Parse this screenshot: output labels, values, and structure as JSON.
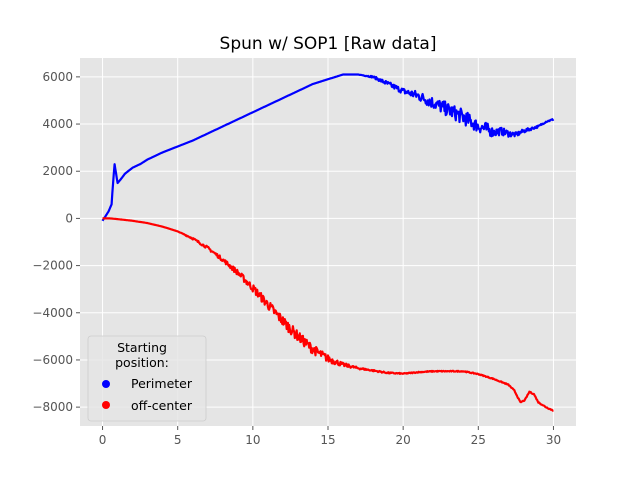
{
  "chart_data": {
    "type": "line",
    "title": "Spun w/ SOP1 [Raw data]",
    "xlabel": "",
    "ylabel": "",
    "xlim": [
      -1.5,
      31.5
    ],
    "ylim": [
      -8800,
      6800
    ],
    "x_ticks": [
      0,
      5,
      10,
      15,
      20,
      25,
      30
    ],
    "y_ticks": [
      -8000,
      -6000,
      -4000,
      -2000,
      0,
      2000,
      4000,
      6000
    ],
    "grid": true,
    "legend": {
      "title": "Starting\n position:",
      "placement": "lower-left",
      "entries": [
        "Perimeter",
        "off-center"
      ]
    },
    "series": [
      {
        "name": "Perimeter",
        "color": "#0000ff",
        "x": [
          0,
          0.2,
          0.4,
          0.6,
          0.7,
          0.8,
          0.9,
          1.0,
          1.2,
          1.5,
          2,
          2.5,
          3,
          4,
          5,
          6,
          7,
          8,
          9,
          10,
          11,
          12,
          13,
          14,
          15,
          16,
          17,
          18,
          19,
          20,
          21,
          22,
          23,
          24,
          25,
          25.5,
          26,
          26.5,
          27,
          27.5,
          28,
          28.5,
          29,
          29.5,
          30
        ],
        "y": [
          -100,
          100,
          300,
          600,
          1500,
          2300,
          1900,
          1500,
          1650,
          1900,
          2150,
          2300,
          2500,
          2800,
          3050,
          3300,
          3600,
          3900,
          4200,
          4500,
          4800,
          5100,
          5400,
          5700,
          5900,
          6100,
          6100,
          6000,
          5700,
          5400,
          5200,
          4900,
          4600,
          4300,
          3900,
          3800,
          3650,
          3700,
          3600,
          3550,
          3700,
          3800,
          3900,
          4100,
          4200
        ],
        "noise": [
          0,
          0,
          0,
          0,
          0,
          0,
          0,
          0,
          0,
          0,
          0,
          0,
          0,
          0,
          0,
          0,
          0,
          0,
          0,
          0,
          0,
          0,
          0,
          0,
          0,
          0,
          0,
          40,
          100,
          120,
          200,
          260,
          300,
          320,
          260,
          280,
          200,
          160,
          140,
          100,
          80,
          60,
          40,
          30,
          30
        ]
      },
      {
        "name": "off-center",
        "color": "#ff0000",
        "x": [
          0,
          0.5,
          1,
          2,
          3,
          4,
          5,
          6,
          7,
          8,
          9,
          10,
          11,
          12,
          13,
          14,
          15,
          16,
          17,
          18,
          19,
          20,
          21,
          22,
          23,
          24,
          25,
          26,
          27,
          27.4,
          27.8,
          28.1,
          28.4,
          28.7,
          29,
          29.5,
          30
        ],
        "y": [
          0,
          0,
          -30,
          -100,
          -200,
          -350,
          -550,
          -850,
          -1250,
          -1750,
          -2300,
          -2950,
          -3650,
          -4350,
          -5000,
          -5550,
          -5950,
          -6200,
          -6350,
          -6450,
          -6550,
          -6580,
          -6520,
          -6480,
          -6480,
          -6480,
          -6600,
          -6800,
          -7050,
          -7300,
          -7800,
          -7700,
          -7350,
          -7450,
          -7800,
          -8000,
          -8150
        ],
        "noise": [
          0,
          0,
          0,
          0,
          0,
          0,
          0,
          40,
          60,
          80,
          120,
          160,
          200,
          220,
          220,
          200,
          160,
          80,
          40,
          30,
          30,
          20,
          20,
          20,
          20,
          20,
          20,
          20,
          20,
          20,
          20,
          20,
          20,
          20,
          20,
          20,
          20
        ]
      }
    ]
  }
}
